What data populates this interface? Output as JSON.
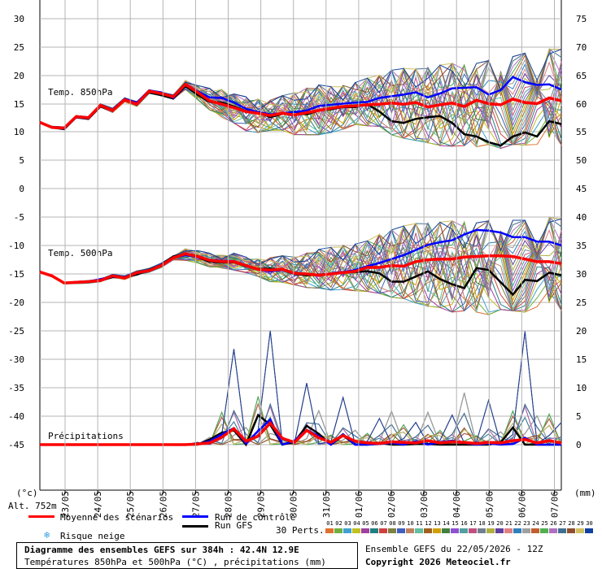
{
  "chart_data": {
    "type": "line",
    "dates": [
      "23/05",
      "24/05",
      "25/05",
      "26/05",
      "27/05",
      "28/05",
      "29/05",
      "30/05",
      "31/05",
      "01/06",
      "02/06",
      "03/06",
      "04/06",
      "05/06",
      "06/06",
      "07/06"
    ],
    "panels": [
      {
        "label": "Temp. 850hPa",
        "left_ticks": [
          "30",
          "25",
          "20",
          "15",
          "10",
          "5",
          "0"
        ],
        "right_ticks": [
          "75",
          "70",
          "65",
          "60",
          "55",
          "50"
        ],
        "ylim": [
          0,
          30
        ],
        "mean": [
          11.7,
          10.8,
          10.7,
          12.7,
          12.5,
          14.7,
          13.8,
          15.7,
          14.9,
          17.2,
          16.8,
          16.2,
          18.4,
          17.0,
          15.5,
          14.9,
          14.3,
          13.6,
          13.3,
          12.9,
          13.3,
          13.0,
          13.4,
          13.8,
          14.2,
          14.5,
          14.6,
          14.8,
          14.9,
          15.1,
          14.9,
          15.2,
          14.4,
          14.8,
          15.1,
          14.5,
          15.6,
          15.0,
          14.8,
          15.8,
          15.2,
          15.0,
          16.0,
          15.5
        ],
        "control": [
          11.7,
          10.8,
          10.6,
          12.6,
          12.4,
          14.6,
          13.9,
          15.8,
          15.2,
          17.3,
          17.0,
          16.0,
          18.4,
          17.2,
          16.1,
          16.0,
          15.2,
          14.1,
          13.5,
          13.1,
          13.3,
          13.5,
          13.8,
          14.6,
          14.8,
          15.0,
          15.2,
          15.3,
          16.0,
          16.3,
          16.6,
          17.0,
          16.1,
          16.8,
          17.7,
          17.8,
          17.9,
          16.6,
          17.4,
          19.7,
          18.8,
          18.3,
          18.4,
          17.5
        ],
        "gfs": [
          11.7,
          10.8,
          10.5,
          12.6,
          12.3,
          14.5,
          13.8,
          15.8,
          15.0,
          17.0,
          16.5,
          15.9,
          18.1,
          16.6,
          15.3,
          15.2,
          14.5,
          13.7,
          13.5,
          12.6,
          13.2,
          13.6,
          13.1,
          13.8,
          14.0,
          14.4,
          14.4,
          14.9,
          13.6,
          11.9,
          11.6,
          12.3,
          12.6,
          12.8,
          11.6,
          9.6,
          9.2,
          8.2,
          7.6,
          9.2,
          9.9,
          9.2,
          11.9,
          11.4
        ],
        "env_top": [
          12.2,
          11.5,
          11.4,
          13.4,
          13.2,
          15.7,
          15.1,
          16.8,
          16.5,
          18.2,
          17.6,
          17.4,
          19.1,
          18.2,
          17.7,
          17.5,
          16.7,
          16.2,
          15.8,
          15.6,
          16.4,
          16.9,
          17.7,
          18.3,
          18.0,
          18.2,
          18.7,
          19.5,
          20.0,
          20.9,
          21.2,
          21.1,
          21.4,
          21.8,
          22.1,
          21.8,
          22.1,
          22.6,
          22.7,
          23.3,
          23.9,
          24.4,
          24.6,
          24.6
        ],
        "env_bot": [
          11.1,
          10.2,
          10.1,
          11.8,
          11.6,
          13.6,
          12.6,
          14.4,
          13.6,
          15.9,
          15.4,
          14.9,
          17.5,
          15.7,
          13.9,
          12.6,
          11.6,
          10.2,
          9.9,
          10.3,
          10.3,
          9.5,
          9.5,
          9.5,
          9.9,
          10.5,
          11.3,
          11.1,
          11.0,
          9.5,
          8.9,
          8.5,
          8.1,
          7.6,
          7.5,
          7.6,
          7.4,
          7.8,
          7.1,
          7.8,
          7.7,
          7.4,
          7.5,
          7.6
        ]
      },
      {
        "label": "Temp. 500hPa",
        "left_ticks": [
          "-5",
          "-10",
          "-15",
          "-20"
        ],
        "right_ticks": [
          "45",
          "40",
          "35",
          "30",
          "25"
        ],
        "ylim": [
          -22,
          0
        ],
        "mean": [
          -12.9,
          -13.5,
          -14.6,
          -14.5,
          -14.4,
          -14.2,
          -13.5,
          -13.8,
          -13.0,
          -12.7,
          -11.9,
          -10.7,
          -10.1,
          -10.5,
          -11.1,
          -11.3,
          -11.3,
          -11.9,
          -12.5,
          -12.6,
          -12.5,
          -13.1,
          -13.2,
          -13.4,
          -13.2,
          -13.0,
          -12.8,
          -12.2,
          -12.2,
          -11.9,
          -12.0,
          -11.3,
          -11.0,
          -10.9,
          -10.9,
          -10.6,
          -10.5,
          -10.4,
          -10.4,
          -10.5,
          -10.9,
          -11.3,
          -11.3,
          -11.6
        ],
        "control": [
          -12.9,
          -13.5,
          -14.6,
          -14.5,
          -14.4,
          -14.0,
          -13.6,
          -13.7,
          -13.1,
          -12.7,
          -11.8,
          -10.7,
          -10.3,
          -10.6,
          -11.0,
          -11.2,
          -11.2,
          -12.0,
          -12.5,
          -12.8,
          -12.6,
          -13.1,
          -13.2,
          -13.5,
          -13.1,
          -12.9,
          -12.6,
          -12.0,
          -11.5,
          -10.9,
          -10.3,
          -9.5,
          -8.7,
          -8.3,
          -8.0,
          -7.1,
          -6.4,
          -6.5,
          -6.8,
          -7.5,
          -7.5,
          -8.2,
          -8.2,
          -8.8
        ],
        "gfs": [
          -12.9,
          -13.5,
          -14.6,
          -14.5,
          -14.4,
          -14.2,
          -13.7,
          -13.7,
          -13.3,
          -12.6,
          -11.8,
          -10.5,
          -10.2,
          -10.6,
          -11.3,
          -11.4,
          -11.4,
          -12.0,
          -12.4,
          -12.4,
          -12.6,
          -13.2,
          -13.4,
          -13.3,
          -13.2,
          -12.9,
          -12.9,
          -12.8,
          -13.1,
          -14.4,
          -14.4,
          -13.6,
          -12.8,
          -14.0,
          -14.8,
          -15.4,
          -12.3,
          -12.6,
          -14.5,
          -16.4,
          -14.1,
          -14.3,
          -13.0,
          -13.4
        ],
        "env_top": [
          -12.6,
          -13.1,
          -14.3,
          -14.0,
          -13.8,
          -13.4,
          -12.7,
          -12.8,
          -12.0,
          -11.4,
          -10.7,
          -9.7,
          -9.3,
          -9.6,
          -10.0,
          -10.3,
          -10.0,
          -10.6,
          -10.9,
          -10.7,
          -10.4,
          -10.6,
          -10.0,
          -9.4,
          -9.1,
          -8.8,
          -8.6,
          -8.1,
          -7.1,
          -6.4,
          -5.8,
          -5.4,
          -5.3,
          -5.2,
          -5.0,
          -5.2,
          -5.3,
          -5.0,
          -4.7,
          -4.9,
          -4.9,
          -4.4,
          -4.5,
          -4.7
        ],
        "env_bot": [
          -13.3,
          -14.1,
          -15.1,
          -15.2,
          -15.2,
          -14.9,
          -14.3,
          -14.7,
          -14.1,
          -13.5,
          -13.0,
          -11.8,
          -11.1,
          -11.5,
          -12.1,
          -12.3,
          -12.6,
          -13.0,
          -13.6,
          -14.4,
          -14.5,
          -14.9,
          -15.3,
          -15.4,
          -15.7,
          -15.6,
          -15.8,
          -15.9,
          -16.2,
          -16.8,
          -17.0,
          -17.7,
          -18.2,
          -18.4,
          -19.1,
          -18.9,
          -19.1,
          -19.5,
          -18.7,
          -18.9,
          -19.1,
          -18.6,
          -18.8,
          -18.9
        ]
      },
      {
        "label": "Précipitations",
        "left_ticks": [
          "-25",
          "-30",
          "-35",
          "-40",
          "-45"
        ],
        "right_ticks": [
          "20",
          "15",
          "10",
          "5",
          "0"
        ],
        "ylim": [
          0,
          20
        ],
        "mean": [
          0,
          0,
          0,
          0,
          0,
          0,
          0,
          0,
          0,
          0,
          0,
          0,
          0,
          0.1,
          0.3,
          1.3,
          2.8,
          0.6,
          1.5,
          3.8,
          1.1,
          0.4,
          2.5,
          1.2,
          0.4,
          1.6,
          0.6,
          0.3,
          0.2,
          0.5,
          0.4,
          0.3,
          0.7,
          0.3,
          0.5,
          0.4,
          0.2,
          0.4,
          0.3,
          0.7,
          0.9,
          0.3,
          0.7,
          0.3
        ],
        "control": [
          0,
          0,
          0,
          0,
          0,
          0,
          0,
          0,
          0,
          0,
          0,
          0,
          0,
          0.1,
          0.6,
          1.8,
          2.9,
          0.2,
          2.4,
          4.4,
          0.0,
          0.7,
          2.6,
          1.5,
          0.0,
          1.8,
          0.0,
          0.0,
          0.1,
          0.3,
          0.0,
          0.6,
          0.0,
          0.4,
          0.7,
          0.3,
          0.0,
          0.2,
          0.0,
          0.1,
          1.2,
          0.0,
          0.0,
          0.0
        ],
        "gfs": [
          0,
          0,
          0,
          0,
          0,
          0,
          0,
          0,
          0,
          0,
          0,
          0,
          0,
          0.0,
          0.9,
          2.1,
          2.5,
          0.0,
          5.2,
          3.5,
          0.0,
          0.5,
          3.3,
          1.9,
          0.0,
          1.6,
          0.0,
          0.0,
          0.3,
          0.0,
          0.0,
          0.1,
          0.1,
          0.0,
          0.0,
          0.0,
          0.0,
          0.0,
          0.4,
          3.0,
          0.0,
          0.0,
          0.0,
          0.0
        ],
        "env_top": [
          0,
          0,
          0,
          0,
          0,
          0,
          0,
          0,
          0,
          0,
          0,
          0,
          0,
          0.4,
          1.7,
          10.7,
          16.8,
          4.0,
          15.9,
          20.0,
          1.8,
          1.5,
          10.8,
          8.0,
          3.2,
          8.3,
          3.4,
          3.7,
          4.6,
          7.9,
          6.6,
          3.9,
          7.6,
          4.7,
          5.2,
          12.2,
          3.0,
          7.8,
          3.0,
          11.1,
          19.9,
          6.8,
          10.1,
          3.9
        ],
        "env_bot": [
          0,
          0,
          0,
          0,
          0,
          0,
          0,
          0,
          0,
          0,
          0,
          0,
          0,
          0,
          0,
          0,
          0,
          0,
          0,
          0,
          0,
          0,
          0,
          0,
          0,
          0,
          0,
          0,
          0,
          0,
          0,
          0,
          0,
          0,
          0,
          0,
          0,
          0,
          0,
          0,
          0,
          0,
          0,
          0
        ]
      }
    ],
    "unit_left": "(°c)",
    "unit_right": "(mm)",
    "altitude": "Alt. 752m",
    "legend": {
      "mean": "Moyenne des scénarios",
      "control": "Run de contrôle",
      "gfs": "Run GFS",
      "snow": "Risque neige",
      "perts": "30 Perts.",
      "pert_numbers": [
        "01",
        "02",
        "03",
        "04",
        "05",
        "06",
        "07",
        "08",
        "09",
        "10",
        "11",
        "12",
        "13",
        "14",
        "15",
        "16",
        "17",
        "18",
        "19",
        "20",
        "21",
        "22",
        "23",
        "24",
        "25",
        "26",
        "27",
        "28",
        "29",
        "30"
      ],
      "pert_colors": [
        "#e07030",
        "#70b040",
        "#40a0d0",
        "#c0c020",
        "#a040a0",
        "#208080",
        "#d04040",
        "#808040",
        "#4060c0",
        "#c08060",
        "#60c0a0",
        "#a06020",
        "#d0a000",
        "#408040",
        "#9050d0",
        "#50a0a0",
        "#c05080",
        "#708090",
        "#b0b040",
        "#6040a0",
        "#e08080",
        "#3080c0",
        "#a0a0a0",
        "#c06030",
        "#50b050",
        "#b070c0",
        "#407090",
        "#905030",
        "#d0c060",
        "#1040a0"
      ]
    },
    "title_box": {
      "line1": "Diagramme des ensembles GEFS sur 384h : 42.4N 12.9E",
      "line2": "Températures 850hPa et 500hPa (°C) , précipitations (mm)"
    },
    "run": "Ensemble GEFS du 22/05/2026 - 12Z",
    "copyright": "Copyright 2026 Meteociel.fr"
  }
}
